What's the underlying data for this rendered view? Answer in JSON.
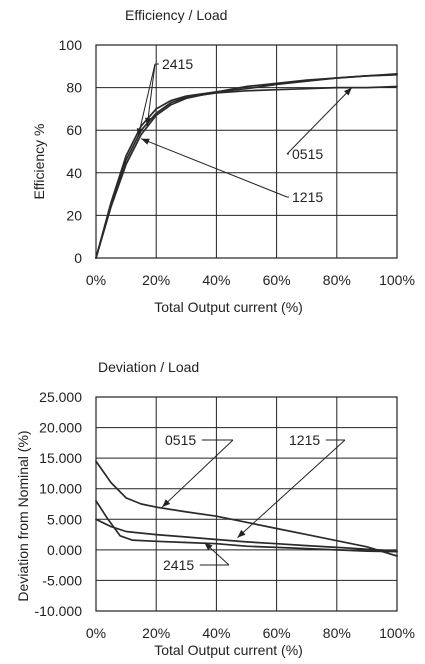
{
  "chart_data": [
    {
      "type": "line",
      "title": "Efficiency / Load",
      "xlabel": "Total Output current (%)",
      "ylabel": "Efficiency %",
      "xlim": [
        0,
        100
      ],
      "ylim": [
        0,
        100
      ],
      "x_tick_labels": [
        "0%",
        "20%",
        "40%",
        "60%",
        "80%",
        "100%"
      ],
      "y_tick_labels": [
        "0",
        "20",
        "40",
        "60",
        "80",
        "100"
      ],
      "grid": true,
      "series": [
        {
          "name": "2415",
          "points": [
            [
              0,
              0
            ],
            [
              5,
              26
            ],
            [
              10,
              48
            ],
            [
              15,
              62
            ],
            [
              20,
              70
            ],
            [
              25,
              74
            ],
            [
              30,
              76
            ],
            [
              40,
              78
            ],
            [
              50,
              79.5
            ],
            [
              60,
              81.5
            ],
            [
              70,
              83
            ],
            [
              80,
              84.5
            ],
            [
              90,
              85.5
            ],
            [
              100,
              86.5
            ]
          ]
        },
        {
          "name": "0515",
          "points": [
            [
              0,
              0
            ],
            [
              5,
              25
            ],
            [
              10,
              46
            ],
            [
              15,
              60
            ],
            [
              20,
              68
            ],
            [
              25,
              73
            ],
            [
              30,
              75.5
            ],
            [
              40,
              77.5
            ],
            [
              50,
              78.5
            ],
            [
              60,
              79
            ],
            [
              70,
              79.5
            ],
            [
              80,
              80
            ],
            [
              90,
              80
            ],
            [
              100,
              80.5
            ]
          ]
        },
        {
          "name": "1215",
          "points": [
            [
              0,
              0
            ],
            [
              5,
              24
            ],
            [
              10,
              44
            ],
            [
              15,
              58
            ],
            [
              20,
              67
            ],
            [
              25,
              72
            ],
            [
              30,
              75
            ],
            [
              40,
              78
            ],
            [
              50,
              80.5
            ],
            [
              60,
              82
            ],
            [
              70,
              83.5
            ],
            [
              80,
              84.5
            ],
            [
              90,
              85.5
            ],
            [
              100,
              86
            ]
          ]
        }
      ]
    },
    {
      "type": "line",
      "title": "Deviation / Load",
      "xlabel": "Total Output current (%)",
      "ylabel": "Deviation from Nominal (%)",
      "xlim": [
        0,
        100
      ],
      "ylim": [
        -10,
        25
      ],
      "x_tick_labels": [
        "0%",
        "20%",
        "40%",
        "60%",
        "80%",
        "100%"
      ],
      "y_tick_labels": [
        "25.000",
        "20.000",
        "15.000",
        "10.000",
        "5.000",
        "0.000",
        "-5.000",
        "-10.000"
      ],
      "grid": true,
      "series": [
        {
          "name": "0515",
          "points": [
            [
              0,
              14.5
            ],
            [
              5,
              11
            ],
            [
              10,
              8.5
            ],
            [
              15,
              7.5
            ],
            [
              20,
              7
            ],
            [
              30,
              6.2
            ],
            [
              40,
              5.5
            ],
            [
              50,
              4.5
            ],
            [
              60,
              3.5
            ],
            [
              70,
              2.5
            ],
            [
              80,
              1.5
            ],
            [
              90,
              0.5
            ],
            [
              100,
              -1
            ]
          ]
        },
        {
          "name": "1215",
          "points": [
            [
              0,
              5
            ],
            [
              5,
              3.8
            ],
            [
              10,
              3
            ],
            [
              20,
              2.5
            ],
            [
              30,
              2.1
            ],
            [
              40,
              1.7
            ],
            [
              50,
              1.3
            ],
            [
              60,
              1
            ],
            [
              70,
              0.7
            ],
            [
              80,
              0.4
            ],
            [
              90,
              0.1
            ],
            [
              100,
              -0.2
            ]
          ]
        },
        {
          "name": "2415",
          "points": [
            [
              0,
              8
            ],
            [
              4,
              5
            ],
            [
              8,
              2.3
            ],
            [
              12,
              1.6
            ],
            [
              20,
              1.4
            ],
            [
              30,
              1.2
            ],
            [
              40,
              1
            ],
            [
              50,
              0.6
            ],
            [
              60,
              0.4
            ],
            [
              70,
              0.2
            ],
            [
              80,
              0
            ],
            [
              90,
              -0.2
            ],
            [
              100,
              -0.3
            ]
          ]
        }
      ]
    }
  ]
}
